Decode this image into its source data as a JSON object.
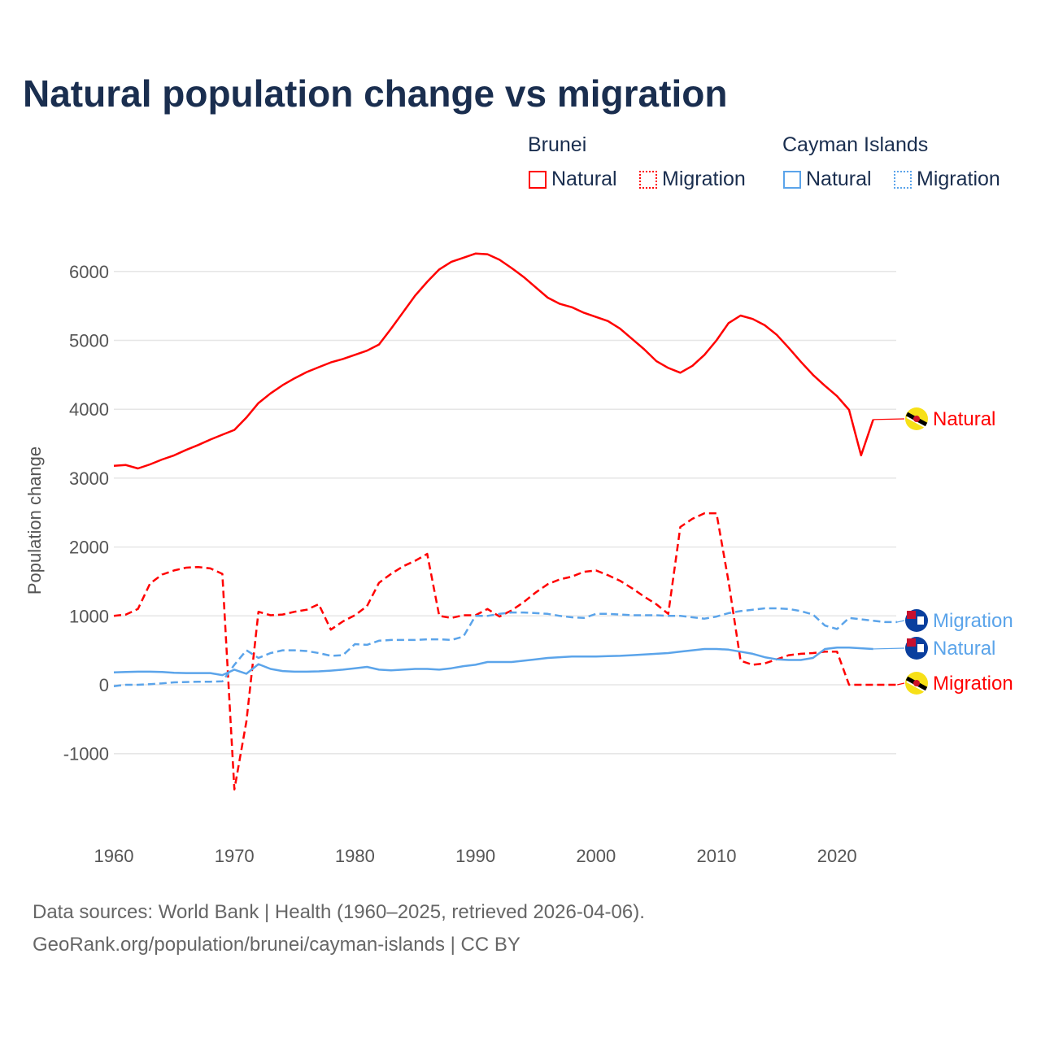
{
  "chart_data": {
    "type": "line",
    "title": "Natural population change vs migration",
    "ylabel": "Population change",
    "xlabel": "",
    "xlim": [
      1960,
      2025
    ],
    "ylim": [
      -2000,
      6500
    ],
    "xticks": [
      "1960",
      "1970",
      "1980",
      "1990",
      "2000",
      "2010",
      "2020"
    ],
    "yticks": [
      "-1000",
      "0",
      "1000",
      "2000",
      "3000",
      "4000",
      "5000",
      "6000"
    ],
    "grid": true,
    "legend": {
      "placement": "top-right",
      "groups": [
        {
          "name": "Brunei",
          "items": [
            "Natural",
            "Migration"
          ]
        },
        {
          "name": "Cayman Islands",
          "items": [
            "Natural",
            "Migration"
          ]
        }
      ]
    },
    "series": [
      {
        "name": "Brunei Natural",
        "country": "Brunei",
        "kind": "Natural",
        "color": "#ff0000",
        "dash": false,
        "start": 1960,
        "values": [
          3180,
          3190,
          3140,
          3200,
          3270,
          3330,
          3410,
          3480,
          3560,
          3630,
          3700,
          3880,
          4090,
          4230,
          4350,
          4450,
          4540,
          4610,
          4680,
          4730,
          4790,
          4850,
          4940,
          5170,
          5410,
          5650,
          5850,
          6030,
          6140,
          6200,
          6260,
          6250,
          6170,
          6050,
          5920,
          5770,
          5620,
          5530,
          5480,
          5400,
          5340,
          5280,
          5170,
          5020,
          4870,
          4700,
          4600,
          4530,
          4630,
          4790,
          5000,
          5250,
          5360,
          5310,
          5220,
          5080,
          4890,
          4690,
          4500,
          4340,
          4190,
          3990,
          3330,
          3850
        ]
      },
      {
        "name": "Brunei Migration",
        "country": "Brunei",
        "kind": "Migration",
        "color": "#ff0000",
        "dash": true,
        "start": 1960,
        "values": [
          1000,
          1020,
          1100,
          1470,
          1600,
          1660,
          1700,
          1710,
          1690,
          1610,
          -1520,
          -530,
          1060,
          1010,
          1020,
          1060,
          1090,
          1170,
          800,
          920,
          1010,
          1140,
          1480,
          1610,
          1720,
          1800,
          1900,
          1000,
          970,
          1010,
          1010,
          1100,
          990,
          1080,
          1200,
          1340,
          1460,
          1530,
          1570,
          1640,
          1660,
          1590,
          1510,
          1400,
          1280,
          1170,
          1030,
          2290,
          2410,
          2490,
          2490,
          1500,
          350,
          290,
          310,
          370,
          430,
          450,
          460,
          480,
          480,
          0,
          0,
          0,
          0,
          0
        ]
      },
      {
        "name": "Cayman Islands Natural",
        "country": "Cayman Islands",
        "kind": "Natural",
        "color": "#5ba4ea",
        "dash": false,
        "start": 1960,
        "values": [
          180,
          185,
          190,
          190,
          185,
          175,
          170,
          170,
          170,
          140,
          220,
          160,
          300,
          230,
          200,
          190,
          190,
          195,
          205,
          220,
          240,
          260,
          220,
          210,
          220,
          230,
          230,
          220,
          240,
          270,
          290,
          330,
          330,
          330,
          350,
          370,
          390,
          400,
          410,
          410,
          410,
          415,
          420,
          430,
          440,
          450,
          460,
          480,
          500,
          520,
          520,
          510,
          480,
          450,
          400,
          370,
          360,
          360,
          390,
          520,
          540,
          540,
          530,
          520
        ]
      },
      {
        "name": "Cayman Islands Migration",
        "country": "Cayman Islands",
        "kind": "Migration",
        "color": "#5ba4ea",
        "dash": true,
        "start": 1960,
        "values": [
          -20,
          0,
          0,
          10,
          20,
          35,
          40,
          45,
          45,
          50,
          290,
          500,
          390,
          460,
          500,
          500,
          490,
          460,
          420,
          430,
          590,
          580,
          640,
          650,
          650,
          650,
          660,
          660,
          650,
          700,
          1000,
          1000,
          1030,
          1050,
          1050,
          1040,
          1030,
          1000,
          980,
          970,
          1030,
          1030,
          1020,
          1010,
          1010,
          1010,
          1000,
          1000,
          980,
          960,
          990,
          1040,
          1070,
          1090,
          1110,
          1110,
          1100,
          1070,
          1020,
          860,
          810,
          970,
          950,
          930,
          910,
          910
        ]
      }
    ],
    "end_labels": [
      {
        "series": 0,
        "text": "Natural",
        "flag": "brunei-flag-icon"
      },
      {
        "series": 3,
        "text": "Migration",
        "flag": "cayman-flag-icon"
      },
      {
        "series": 2,
        "text": "Natural",
        "flag": "cayman-flag-icon"
      },
      {
        "series": 1,
        "text": "Migration",
        "flag": "brunei-flag-icon"
      }
    ]
  },
  "footer": {
    "line1": "Data sources: World Bank | Health (1960–2025, retrieved 2026-04-06).",
    "line2": "GeoRank.org/population/brunei/cayman-islands | CC BY"
  },
  "colors": {
    "brunei": "#ff0000",
    "cayman": "#5ba4ea",
    "title": "#1a2e4f"
  }
}
